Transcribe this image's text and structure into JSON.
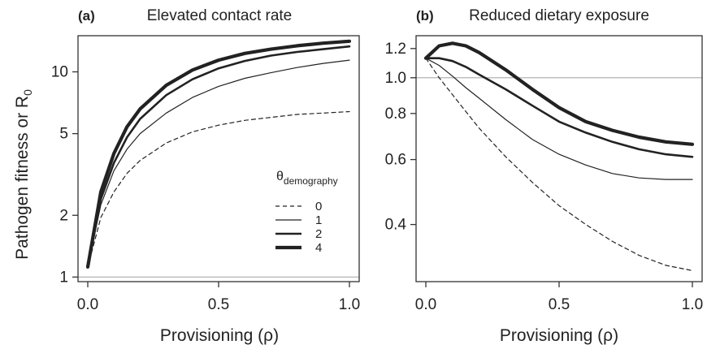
{
  "shared": {
    "ylabel_main": "Pathogen fitness or R",
    "ylabel_sub": "0",
    "xlabel_main": "Provisioning (",
    "xlabel_symbol": "ρ",
    "xlabel_close": ")",
    "legend": {
      "title_symbol": "θ",
      "title_sub": "demography",
      "entries": [
        "0",
        "1",
        "2",
        "4"
      ]
    },
    "colors": {
      "curves": "#222222",
      "reference_line": "#b3b3b3",
      "axes": "#333333"
    }
  },
  "chart_data": [
    {
      "type": "line",
      "panel": "(a)",
      "title": "Elevated contact rate",
      "xlabel": "Provisioning (ρ)",
      "ylabel": "Pathogen fitness or R0",
      "xlim": [
        0,
        1
      ],
      "ylim": [
        0.95,
        15
      ],
      "y_scale": "log",
      "xticks": [
        0.0,
        0.5,
        1.0
      ],
      "xtick_labels": [
        "0.0",
        "0.5",
        "1.0"
      ],
      "yticks": [
        1,
        2,
        5,
        10
      ],
      "ytick_labels": [
        "1",
        "2",
        "5",
        "10"
      ],
      "reference_line": 1,
      "legend_position": "right",
      "x": [
        0,
        0.05,
        0.1,
        0.15,
        0.2,
        0.3,
        0.4,
        0.5,
        0.6,
        0.7,
        0.8,
        0.9,
        1.0
      ],
      "series": [
        {
          "name": "0",
          "line_style": "dashed",
          "line_width": 1.2,
          "values": [
            1.12,
            1.95,
            2.6,
            3.2,
            3.7,
            4.5,
            5.1,
            5.5,
            5.8,
            6.0,
            6.2,
            6.3,
            6.4
          ]
        },
        {
          "name": "1",
          "line_style": "solid",
          "line_width": 1.2,
          "values": [
            1.12,
            2.25,
            3.3,
            4.2,
            5.0,
            6.3,
            7.5,
            8.5,
            9.3,
            9.9,
            10.5,
            11.0,
            11.4
          ]
        },
        {
          "name": "2",
          "line_style": "solid",
          "line_width": 2.6,
          "values": [
            1.12,
            2.4,
            3.6,
            4.8,
            5.9,
            7.7,
            9.2,
            10.4,
            11.3,
            12.0,
            12.5,
            12.9,
            13.3
          ]
        },
        {
          "name": "4",
          "line_style": "solid",
          "line_width": 4.2,
          "values": [
            1.12,
            2.6,
            4.0,
            5.4,
            6.6,
            8.6,
            10.2,
            11.4,
            12.3,
            12.9,
            13.4,
            13.8,
            14.1
          ]
        }
      ]
    },
    {
      "type": "line",
      "panel": "(b)",
      "title": "Reduced dietary exposure",
      "xlabel": "Provisioning (ρ)",
      "xlim": [
        0,
        1
      ],
      "ylim": [
        0.28,
        1.3
      ],
      "y_scale": "log",
      "xticks": [
        0.0,
        0.5,
        1.0
      ],
      "xtick_labels": [
        "0.0",
        "0.5",
        "1.0"
      ],
      "yticks": [
        0.4,
        0.6,
        0.8,
        1.0,
        1.2
      ],
      "ytick_labels": [
        "0.4",
        "0.6",
        "0.8",
        "1.0",
        "1.2"
      ],
      "reference_line": 1,
      "x": [
        0,
        0.05,
        0.1,
        0.15,
        0.2,
        0.3,
        0.4,
        0.5,
        0.6,
        0.7,
        0.8,
        0.9,
        1.0
      ],
      "series": [
        {
          "name": "0",
          "line_style": "dashed",
          "line_width": 1.2,
          "values": [
            1.13,
            1.0,
            0.9,
            0.81,
            0.73,
            0.61,
            0.52,
            0.45,
            0.4,
            0.36,
            0.33,
            0.31,
            0.3
          ]
        },
        {
          "name": "1",
          "line_style": "solid",
          "line_width": 1.2,
          "values": [
            1.13,
            1.08,
            1.01,
            0.94,
            0.88,
            0.77,
            0.68,
            0.62,
            0.58,
            0.55,
            0.535,
            0.53,
            0.53
          ]
        },
        {
          "name": "2",
          "line_style": "solid",
          "line_width": 2.6,
          "values": [
            1.13,
            1.13,
            1.11,
            1.07,
            1.02,
            0.93,
            0.84,
            0.76,
            0.71,
            0.67,
            0.64,
            0.62,
            0.61
          ]
        },
        {
          "name": "4",
          "line_style": "solid",
          "line_width": 4.2,
          "values": [
            1.13,
            1.22,
            1.24,
            1.22,
            1.17,
            1.05,
            0.93,
            0.83,
            0.76,
            0.72,
            0.69,
            0.67,
            0.66
          ]
        }
      ]
    }
  ]
}
